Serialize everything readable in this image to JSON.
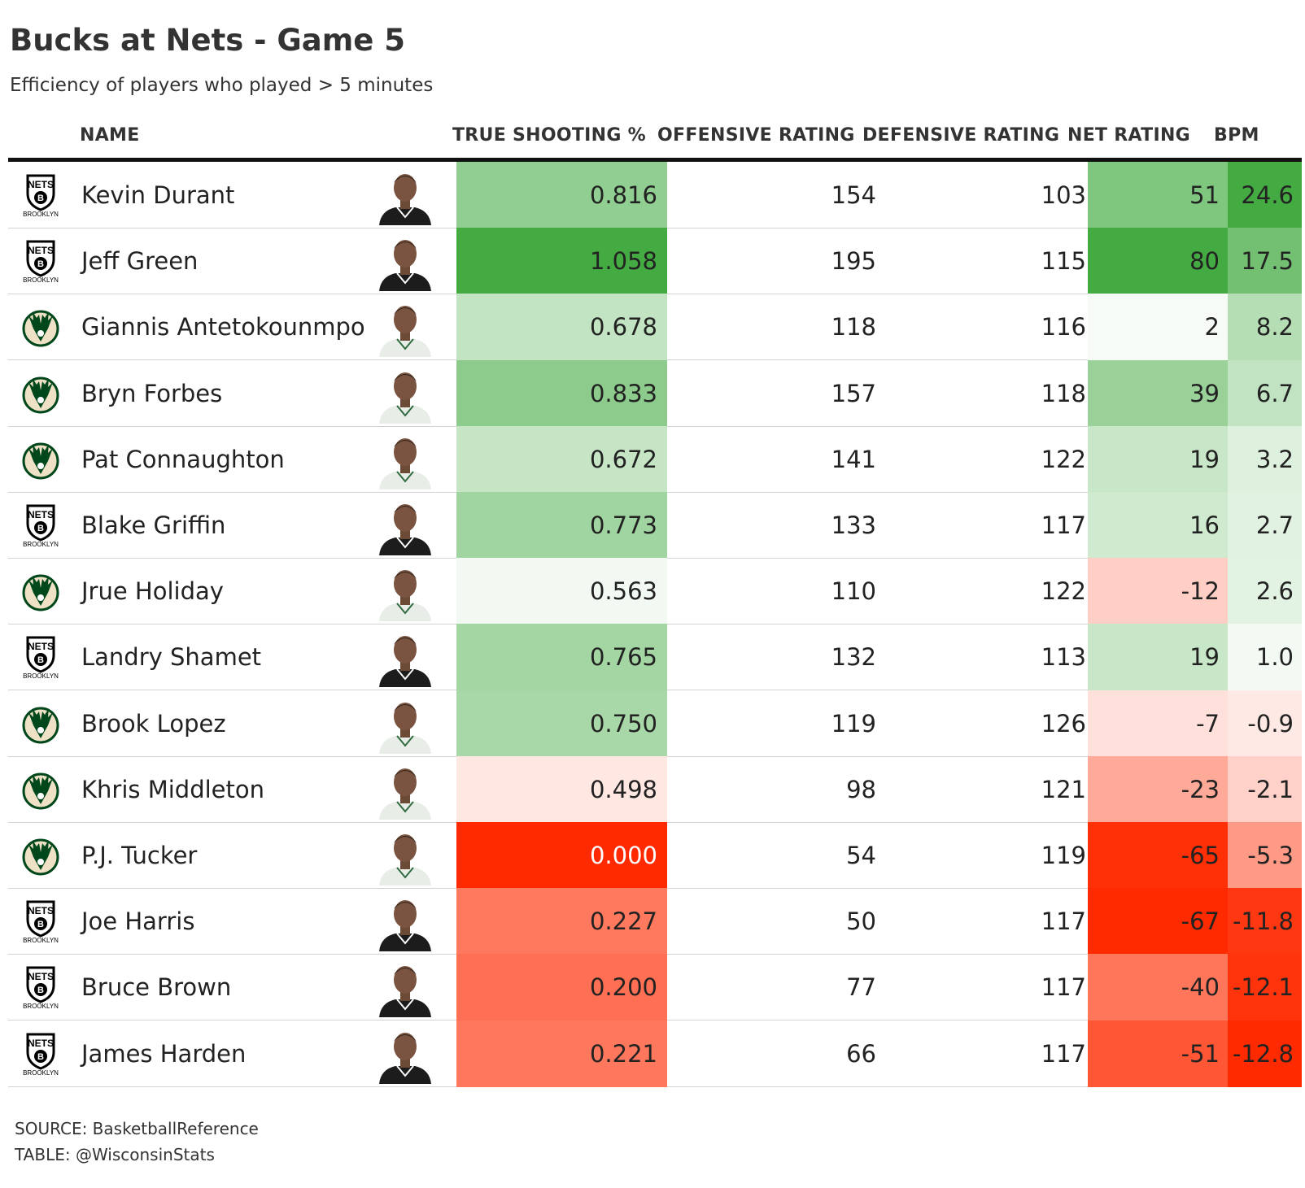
{
  "title": "Bucks at Nets - Game 5",
  "subtitle": "Efficiency of players who played > 5 minutes",
  "columns": {
    "name": "NAME",
    "ts": "TRUE SHOOTING %",
    "ortg": "OFFENSIVE RATING",
    "drtg": "DEFENSIVE RATING",
    "net": "NET RATING",
    "bpm": "BPM"
  },
  "logo_text": {
    "nets_top": "NETS",
    "nets_bottom": "BROOKLYN",
    "bucks": "MILWAUKEE BUCKS"
  },
  "colors": {
    "positive_max": "#44ab43",
    "negative_max": "#ff2a00",
    "neutral": "#ffffff",
    "nets_logo": "#000000",
    "bucks_logo": "#00471b",
    "bucks_cream": "#eee1c6"
  },
  "chart_data": {
    "type": "table",
    "title": "Bucks at Nets - Game 5",
    "subtitle": "Efficiency of players who played > 5 minutes",
    "headers": [
      "NAME",
      "TRUE SHOOTING %",
      "OFFENSIVE RATING",
      "DEFENSIVE RATING",
      "NET RATING",
      "BPM"
    ],
    "rows": [
      {
        "team": "nets",
        "name": "Kevin Durant",
        "ts": "0.816",
        "ortg": "154",
        "drtg": "103",
        "net": "51",
        "bpm": "24.6",
        "jersey": "nets"
      },
      {
        "team": "nets",
        "name": "Jeff Green",
        "ts": "1.058",
        "ortg": "195",
        "drtg": "115",
        "net": "80",
        "bpm": "17.5",
        "jersey": "nets"
      },
      {
        "team": "bucks",
        "name": "Giannis Antetokounmpo",
        "ts": "0.678",
        "ortg": "118",
        "drtg": "116",
        "net": "2",
        "bpm": "8.2",
        "jersey": "bucks"
      },
      {
        "team": "bucks",
        "name": "Bryn Forbes",
        "ts": "0.833",
        "ortg": "157",
        "drtg": "118",
        "net": "39",
        "bpm": "6.7",
        "jersey": "bucks"
      },
      {
        "team": "bucks",
        "name": "Pat Connaughton",
        "ts": "0.672",
        "ortg": "141",
        "drtg": "122",
        "net": "19",
        "bpm": "3.2",
        "jersey": "bucks"
      },
      {
        "team": "nets",
        "name": "Blake Griffin",
        "ts": "0.773",
        "ortg": "133",
        "drtg": "117",
        "net": "16",
        "bpm": "2.7",
        "jersey": "nets"
      },
      {
        "team": "bucks",
        "name": "Jrue Holiday",
        "ts": "0.563",
        "ortg": "110",
        "drtg": "122",
        "net": "-12",
        "bpm": "2.6",
        "jersey": "bucks"
      },
      {
        "team": "nets",
        "name": "Landry Shamet",
        "ts": "0.765",
        "ortg": "132",
        "drtg": "113",
        "net": "19",
        "bpm": "1.0",
        "jersey": "nets"
      },
      {
        "team": "bucks",
        "name": "Brook Lopez",
        "ts": "0.750",
        "ortg": "119",
        "drtg": "126",
        "net": "-7",
        "bpm": "-0.9",
        "jersey": "bucks"
      },
      {
        "team": "bucks",
        "name": "Khris Middleton",
        "ts": "0.498",
        "ortg": "98",
        "drtg": "121",
        "net": "-23",
        "bpm": "-2.1",
        "jersey": "bucks"
      },
      {
        "team": "bucks",
        "name": "P.J. Tucker",
        "ts": "0.000",
        "ortg": "54",
        "drtg": "119",
        "net": "-65",
        "bpm": "-5.3",
        "jersey": "bucks"
      },
      {
        "team": "nets",
        "name": "Joe Harris",
        "ts": "0.227",
        "ortg": "50",
        "drtg": "117",
        "net": "-67",
        "bpm": "-11.8",
        "jersey": "nets"
      },
      {
        "team": "nets",
        "name": "Bruce Brown",
        "ts": "0.200",
        "ortg": "77",
        "drtg": "117",
        "net": "-40",
        "bpm": "-12.1",
        "jersey": "nets"
      },
      {
        "team": "nets",
        "name": "James Harden",
        "ts": "0.221",
        "ortg": "66",
        "drtg": "117",
        "net": "-51",
        "bpm": "-12.8",
        "jersey": "nets"
      }
    ],
    "color_scales": {
      "ts": {
        "low": 0.0,
        "mid": 0.54,
        "high": 1.058
      },
      "net": {
        "low": -67,
        "mid": 0,
        "high": 80
      },
      "bpm": {
        "low": -12.8,
        "mid": 0,
        "high": 24.6
      }
    }
  },
  "footer": {
    "source": "SOURCE: BasketballReference",
    "table": "TABLE: @WisconsinStats"
  }
}
